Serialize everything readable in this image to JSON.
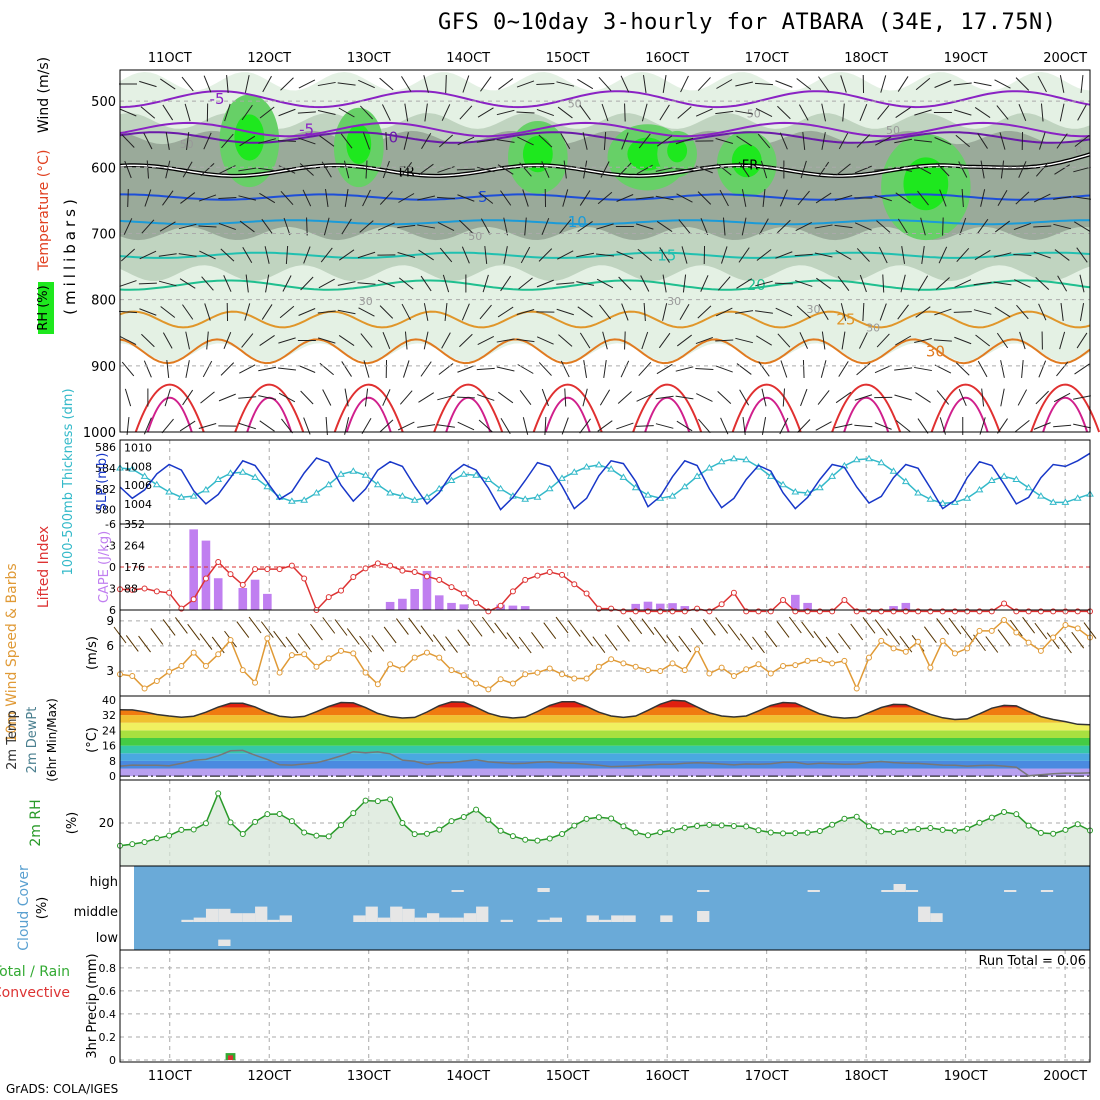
{
  "title": "GFS 0~10day 3-hourly for ATBARA (34E, 17.75N)",
  "credit": "GrADS: COLA/IGES",
  "colors": {
    "rh_light": "#e4f1e4",
    "rh_mid": "#c0d4c0",
    "rh_dark": "#9aaa9a",
    "rh_green": "#67d067",
    "rh_bright": "#1ee81e",
    "temp_neg": "#8a22c4",
    "temp_5": "#1d4ed8",
    "temp_10": "#1b9bd8",
    "temp_15": "#20c0b0",
    "temp_20": "#1fbf8f",
    "temp_25": "#e0962a",
    "temp_30": "#e07a20",
    "temp_35": "#d0202a",
    "temp_40": "#d01f8c",
    "slp": "#1837c8",
    "thickness": "#33b9c9",
    "lifted": "#dd3333",
    "cape": "#c07ff0",
    "wind10": "#e09a36",
    "dewpt": "#4a7f8f",
    "rh2m": "#2a9a2a",
    "cloud": "#6aaad8",
    "cloud_fill": "#e6e6e6",
    "precip_total": "#33aa33",
    "precip_conv": "#dd3333",
    "grid": "#aaaaaa"
  },
  "x_axis": {
    "labels": [
      "11OCT",
      "12OCT",
      "13OCT",
      "14OCT",
      "15OCT",
      "16OCT",
      "17OCT",
      "18OCT",
      "19OCT",
      "20OCT"
    ],
    "start_day": 10.5,
    "end_day": 20.25
  },
  "panels": {
    "upper_air": {
      "ylabel": "(millibars)",
      "side_labels": [
        "RH (%)",
        "Temperature (°C)",
        "Wind (m/s)"
      ],
      "pressure_ticks": [
        500,
        600,
        700,
        800,
        900,
        1000
      ],
      "freezing_label": "FR",
      "temp_contours": [
        {
          "label": "-5",
          "pressure": 497,
          "amp": 12
        },
        {
          "label": "-5",
          "pressure": 543,
          "amp": 10
        },
        {
          "label": "0",
          "pressure": 555,
          "amp": 8
        },
        {
          "label": "5",
          "pressure": 645,
          "amp": 4
        },
        {
          "label": "10",
          "pressure": 683,
          "amp": 3
        },
        {
          "label": "15",
          "pressure": 733,
          "amp": 4
        },
        {
          "label": "20",
          "pressure": 778,
          "amp": 7
        },
        {
          "label": "25",
          "pressure": 830,
          "amp": 12
        },
        {
          "label": "30",
          "pressure": 878,
          "amp": 18
        }
      ],
      "rh_labels": [
        "50",
        "50",
        "50",
        "50",
        "50",
        "30",
        "30",
        "30",
        "30",
        "0"
      ]
    },
    "slp_thickness": {
      "ylabel_left": "1000-500mb Thickness (dm)",
      "ylabel_right": "SLP (mb)",
      "left_ticks": [
        580,
        582,
        584,
        586
      ],
      "right_ticks": [
        1004,
        1006,
        1008,
        1010
      ]
    },
    "cape_li": {
      "ylabel_left": "Lifted Index",
      "ylabel_right": "CAPE (J/kg)",
      "left_ticks": [
        "-6",
        "-3",
        "0",
        "3",
        "6"
      ],
      "right_ticks": [
        "352",
        "264",
        "176",
        "88"
      ]
    },
    "wind10m": {
      "ylabel": "10m Wind Speed & Barbs",
      "unit": "(m/s)",
      "ticks": [
        3,
        6,
        9
      ]
    },
    "temp2m": {
      "ylabel": "2m Temp 2m DewPt (6hr Min/Max)",
      "unit": "(°C)",
      "ticks": [
        "40",
        "32",
        "24",
        "16",
        "8",
        "0"
      ]
    },
    "rh2m": {
      "ylabel": "2m RH",
      "unit": "(%)",
      "ticks": [
        "20"
      ]
    },
    "cloud": {
      "ylabel": "Cloud Cover",
      "unit": "(%)",
      "levels": [
        "high",
        "middle",
        "low"
      ]
    },
    "precip": {
      "ylabel_lines": [
        "Total / Rain",
        "Convective"
      ],
      "ylabel_right": "3hr Precip (mm)",
      "ticks": [
        "0.8",
        "0.6",
        "0.4",
        "0.2",
        "0"
      ],
      "run_total": "Run Total = 0.06"
    }
  },
  "chart_data": {
    "type": "line",
    "time_axis_days_oct": [
      10.5,
      20.25
    ],
    "slp_mb": [
      1005.8,
      1004.6,
      1005.5,
      1007.2,
      1008.2,
      1007.6,
      1005.4,
      1004.0,
      1005.0,
      1006.8,
      1008.6,
      1008.1,
      1006.3,
      1004.5,
      1005.3,
      1007.3,
      1008.9,
      1008.4,
      1006.0,
      1004.3,
      1005.6,
      1007.6,
      1008.5,
      1008.0,
      1005.9,
      1004.0,
      1005.2,
      1007.2,
      1008.2,
      1007.6,
      1005.7,
      1003.4,
      1004.7,
      1006.5,
      1008.4,
      1008.0,
      1005.9,
      1003.5,
      1004.6,
      1007.0,
      1008.6,
      1008.3,
      1006.4,
      1003.7,
      1004.8,
      1006.9,
      1008.6,
      1008.1,
      1005.6,
      1003.6,
      1004.6,
      1006.6,
      1008.1,
      1007.5,
      1005.2,
      1003.5,
      1004.7,
      1006.6,
      1008.2,
      1007.9,
      1005.8,
      1004.1,
      1004.8,
      1006.8,
      1008.2,
      1007.8,
      1005.7,
      1003.5,
      1004.4,
      1006.8,
      1008.5,
      1008.1,
      1006.1,
      1004.0,
      1004.7,
      1006.8,
      1008.2,
      1008.0,
      1008.6,
      1009.4
    ],
    "thickness_dm": [
      584.0,
      583.9,
      583.2,
      582.4,
      581.7,
      581.2,
      581.3,
      581.9,
      582.9,
      583.5,
      583.6,
      583.1,
      582.2,
      581.2,
      580.8,
      580.9,
      581.6,
      582.4,
      583.4,
      583.7,
      583.3,
      582.4,
      581.6,
      581.3,
      580.9,
      581.2,
      582.0,
      582.8,
      583.4,
      583.3,
      582.9,
      582.0,
      581.3,
      581.0,
      581.2,
      582.0,
      583.0,
      583.6,
      584.1,
      584.3,
      583.9,
      583.1,
      582.1,
      581.4,
      581.1,
      581.3,
      582.2,
      583.2,
      584.0,
      584.6,
      584.9,
      584.8,
      584.1,
      583.2,
      582.4,
      581.7,
      581.6,
      582.1,
      583.2,
      584.2,
      584.8,
      584.9,
      584.5,
      583.7,
      582.7,
      581.6,
      581.0,
      580.6,
      580.7,
      581.1,
      581.9,
      582.8,
      583.2,
      582.9,
      582.1,
      581.3,
      580.7,
      580.7,
      581.1,
      581.5
    ],
    "lifted_index": [
      3.1,
      3.2,
      3.0,
      3.4,
      3.6,
      5.8,
      4.5,
      1.6,
      -0.7,
      1.0,
      2.5,
      0.3,
      0.3,
      0.3,
      -0.2,
      1.6,
      6.0,
      4.2,
      3.3,
      1.4,
      0.2,
      -0.5,
      -0.2,
      0.5,
      0.7,
      1.3,
      1.8,
      2.8,
      3.7,
      5.0,
      6.2,
      5.4,
      3.4,
      1.8,
      1.2,
      0.7,
      1.1,
      2.4,
      3.7,
      5.8,
      5.8,
      6.2,
      6.2,
      6.2,
      6.2,
      6.2,
      6.2,
      5.8,
      6.2,
      5.2,
      3.6,
      6.2,
      6.2,
      6.2,
      4.6,
      6.2,
      6.2,
      6.2,
      6.2,
      4.6,
      6.2,
      6.2,
      6.2,
      6.2,
      6.2,
      6.2,
      6.2,
      6.2,
      6.2,
      6.2,
      6.2,
      6.2,
      5.1,
      6.2,
      6.2,
      6.2,
      6.2,
      6.2,
      6.2,
      6.2
    ],
    "cape_jkg": [
      0,
      0,
      0,
      0,
      0,
      0,
      330,
      284,
      130,
      0,
      90,
      124,
      66,
      0,
      0,
      0,
      0,
      0,
      0,
      0,
      0,
      0,
      33,
      46,
      86,
      160,
      60,
      29,
      23,
      0,
      0,
      22,
      18,
      16,
      0,
      0,
      0,
      0,
      0,
      0,
      0,
      0,
      25,
      34,
      26,
      28,
      16,
      0,
      0,
      0,
      0,
      0,
      0,
      0,
      0,
      62,
      29,
      0,
      0,
      0,
      0,
      0,
      0,
      16,
      29,
      0,
      0,
      0,
      0,
      0,
      0,
      0,
      0,
      0,
      0,
      0,
      0,
      0,
      0,
      0
    ],
    "wind10m_ms": [
      2.6,
      2.4,
      0.9,
      1.8,
      2.9,
      3.6,
      5.2,
      3.6,
      5.0,
      6.7,
      3.1,
      1.6,
      6.9,
      2.8,
      4.9,
      5.0,
      3.5,
      4.5,
      5.4,
      5.1,
      2.8,
      1.4,
      3.8,
      3.2,
      4.6,
      5.2,
      4.6,
      3.1,
      2.5,
      1.5,
      0.8,
      2.0,
      1.5,
      2.6,
      2.8,
      3.3,
      2.6,
      2.1,
      2.1,
      3.5,
      4.4,
      3.9,
      3.5,
      3.1,
      3.0,
      3.9,
      3.1,
      5.6,
      2.7,
      3.4,
      2.4,
      3.2,
      3.8,
      2.7,
      3.6,
      3.7,
      4.2,
      4.3,
      3.9,
      4.2,
      0.9,
      4.6,
      6.6,
      5.7,
      5.3,
      6.5,
      3.4,
      6.6,
      5.1,
      5.7,
      7.8,
      7.8,
      9.1,
      7.6,
      6.4,
      5.4,
      7.0,
      8.5,
      8.1,
      7.0
    ],
    "temp2m_c": [
      34.8,
      34.7,
      33.7,
      32.3,
      31.5,
      30.9,
      31.4,
      33.5,
      36.2,
      38.2,
      38.2,
      36.3,
      33.4,
      31.4,
      30.8,
      31.3,
      33.8,
      36.5,
      38.6,
      38.4,
      35.9,
      32.9,
      31.2,
      30.5,
      30.8,
      33.6,
      36.9,
      38.9,
      38.8,
      36.1,
      33.0,
      31.2,
      30.5,
      31.0,
      33.9,
      37.0,
      39.0,
      39.0,
      36.5,
      33.5,
      31.5,
      30.8,
      31.5,
      34.5,
      37.7,
      39.8,
      39.4,
      36.3,
      33.2,
      31.5,
      31.0,
      31.5,
      34.2,
      37.0,
      38.6,
      38.3,
      35.5,
      32.6,
      31.0,
      30.4,
      30.8,
      33.3,
      36.0,
      37.6,
      37.5,
      35.0,
      32.4,
      30.6,
      29.7,
      30.0,
      32.7,
      35.6,
      37.1,
      36.8,
      33.9,
      31.2,
      29.7,
      28.6,
      27.2,
      26.9
    ],
    "dewpt2m_c": [
      5.3,
      5.8,
      5.7,
      5.7,
      5.5,
      6.7,
      8.3,
      8.8,
      10.7,
      13.3,
      13.5,
      11.0,
      8.8,
      6.0,
      5.8,
      6.4,
      7.0,
      8.7,
      10.6,
      12.8,
      12.3,
      12.7,
      11.7,
      8.4,
      7.8,
      6.1,
      7.0,
      7.1,
      7.9,
      8.6,
      7.5,
      7.0,
      6.6,
      6.8,
      7.3,
      7.6,
      6.9,
      6.8,
      6.3,
      5.7,
      5.0,
      5.2,
      5.5,
      5.9,
      6.3,
      6.2,
      6.8,
      7.0,
      6.8,
      6.4,
      5.9,
      6.4,
      6.3,
      6.5,
      7.3,
      7.3,
      6.3,
      6.8,
      6.5,
      6.3,
      6.4,
      7.2,
      7.7,
      7.1,
      6.8,
      6.7,
      6.2,
      5.8,
      5.7,
      5.3,
      5.6,
      5.7,
      5.3,
      4.7,
      0.2,
      0.8,
      1.3,
      1.6,
      1.5,
      1.7
    ],
    "rh2m_pct": [
      9.4,
      10.2,
      11.1,
      12.9,
      14.1,
      16.8,
      17.0,
      19.9,
      33.8,
      20.3,
      14.9,
      20.5,
      24.1,
      24.2,
      20.9,
      15.6,
      14.1,
      13.8,
      19.0,
      24.6,
      30.4,
      30.2,
      31.0,
      20.0,
      14.8,
      15.0,
      16.9,
      20.9,
      22.8,
      26.2,
      21.5,
      16.4,
      13.9,
      12.2,
      11.8,
      12.8,
      14.9,
      18.8,
      21.9,
      22.7,
      22.1,
      18.5,
      15.6,
      14.3,
      15.7,
      16.6,
      17.8,
      18.6,
      19.1,
      18.9,
      18.6,
      18.4,
      16.6,
      15.6,
      15.2,
      15.3,
      15.5,
      16.3,
      19.2,
      22.0,
      22.9,
      18.5,
      16.1,
      15.8,
      16.6,
      17.2,
      17.7,
      16.8,
      16.4,
      17.3,
      20.1,
      22.5,
      25.1,
      24.1,
      18.8,
      15.4,
      15.0,
      16.8,
      19.4,
      16.5
    ],
    "cloud_high": [
      0,
      0,
      0,
      0,
      0,
      0,
      0,
      0,
      0,
      0,
      0,
      0,
      0,
      0,
      0,
      0,
      0,
      0,
      0,
      0,
      0,
      0,
      0,
      0,
      0,
      0,
      0,
      10,
      0,
      0,
      0,
      0,
      0,
      0,
      20,
      0,
      0,
      0,
      0,
      0,
      0,
      0,
      0,
      0,
      0,
      0,
      0,
      10,
      0,
      0,
      0,
      0,
      0,
      0,
      0,
      0,
      10,
      0,
      0,
      0,
      0,
      0,
      10,
      40,
      10,
      0,
      0,
      0,
      0,
      0,
      0,
      0,
      10,
      0,
      0,
      10,
      0,
      0,
      0,
      0
    ],
    "cloud_middle": [
      0,
      0,
      0,
      0,
      0,
      10,
      20,
      60,
      60,
      40,
      40,
      70,
      10,
      30,
      0,
      0,
      0,
      0,
      0,
      30,
      70,
      20,
      70,
      60,
      20,
      40,
      20,
      20,
      40,
      70,
      0,
      10,
      0,
      0,
      10,
      20,
      0,
      0,
      30,
      10,
      30,
      30,
      0,
      0,
      30,
      0,
      0,
      50,
      0,
      0,
      0,
      0,
      0,
      0,
      0,
      0,
      0,
      0,
      0,
      0,
      0,
      0,
      0,
      0,
      0,
      70,
      40,
      0,
      0,
      0,
      0,
      0,
      0,
      0,
      0,
      0,
      0,
      0,
      0,
      0
    ],
    "cloud_low": [
      0,
      0,
      0,
      0,
      0,
      0,
      0,
      0,
      40,
      0,
      0,
      0,
      0,
      0,
      0,
      0,
      0,
      0,
      0,
      0,
      0,
      0,
      0,
      0,
      0,
      0,
      0,
      0,
      0,
      0,
      0,
      0,
      0,
      0,
      0,
      0,
      0,
      0,
      0,
      0,
      0,
      0,
      0,
      0,
      0,
      0,
      0,
      0,
      0,
      0,
      0,
      0,
      0,
      0,
      0,
      0,
      0,
      0,
      0,
      0,
      0,
      0,
      0,
      0,
      0,
      0,
      0,
      0,
      0,
      0,
      0,
      0,
      0,
      0,
      0,
      0,
      0,
      0,
      0,
      0
    ],
    "precip_total_mm": [
      0,
      0,
      0,
      0,
      0,
      0,
      0,
      0,
      0,
      0.06,
      0,
      0,
      0,
      0,
      0,
      0,
      0,
      0,
      0,
      0,
      0,
      0,
      0,
      0,
      0,
      0,
      0,
      0,
      0,
      0,
      0,
      0,
      0,
      0,
      0,
      0,
      0,
      0,
      0,
      0,
      0,
      0,
      0,
      0,
      0,
      0,
      0,
      0,
      0,
      0,
      0,
      0,
      0,
      0,
      0,
      0,
      0,
      0,
      0,
      0,
      0,
      0,
      0,
      0,
      0,
      0,
      0,
      0,
      0,
      0,
      0,
      0,
      0,
      0,
      0,
      0,
      0,
      0,
      0,
      0
    ],
    "precip_convective_mm": [
      0,
      0,
      0,
      0,
      0,
      0,
      0,
      0,
      0,
      0.04,
      0,
      0,
      0,
      0,
      0,
      0,
      0,
      0,
      0,
      0,
      0,
      0,
      0,
      0,
      0,
      0,
      0,
      0,
      0,
      0,
      0,
      0,
      0,
      0,
      0,
      0,
      0,
      0,
      0,
      0,
      0,
      0,
      0,
      0,
      0,
      0,
      0,
      0,
      0,
      0,
      0,
      0,
      0,
      0,
      0,
      0,
      0,
      0,
      0,
      0,
      0,
      0,
      0,
      0,
      0,
      0,
      0,
      0,
      0,
      0,
      0,
      0,
      0,
      0,
      0,
      0,
      0,
      0,
      0,
      0
    ]
  }
}
